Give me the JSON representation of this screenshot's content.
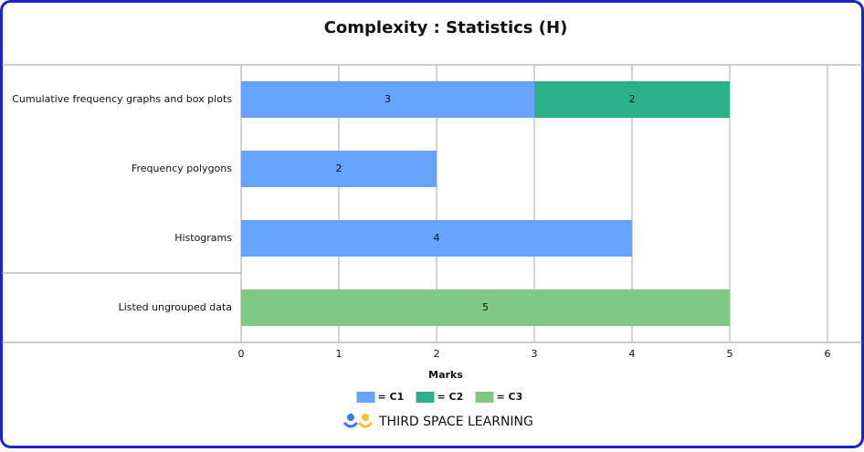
{
  "chart_data": {
    "type": "bar",
    "orientation": "horizontal",
    "stacked": true,
    "title": "Complexity : Statistics (H)",
    "categories": [
      "Cumulative frequency graphs and box plots",
      "Frequency polygons",
      "Histograms",
      "Listed ungrouped data"
    ],
    "series": [
      {
        "name": "= C1",
        "color": "#66a3ff",
        "values": [
          3,
          2,
          4,
          null
        ]
      },
      {
        "name": "= C2",
        "color": "#2bb08a",
        "values": [
          2,
          null,
          null,
          null
        ]
      },
      {
        "name": "= C3",
        "color": "#80c883",
        "values": [
          null,
          null,
          null,
          5
        ]
      }
    ],
    "x_label": "Marks",
    "xlim": [
      0,
      6
    ],
    "xticks": [
      0,
      1,
      2,
      3,
      4,
      5,
      6
    ],
    "grid": true
  },
  "branding": {
    "logo_text": "THIRD SPACE LEARNING"
  }
}
